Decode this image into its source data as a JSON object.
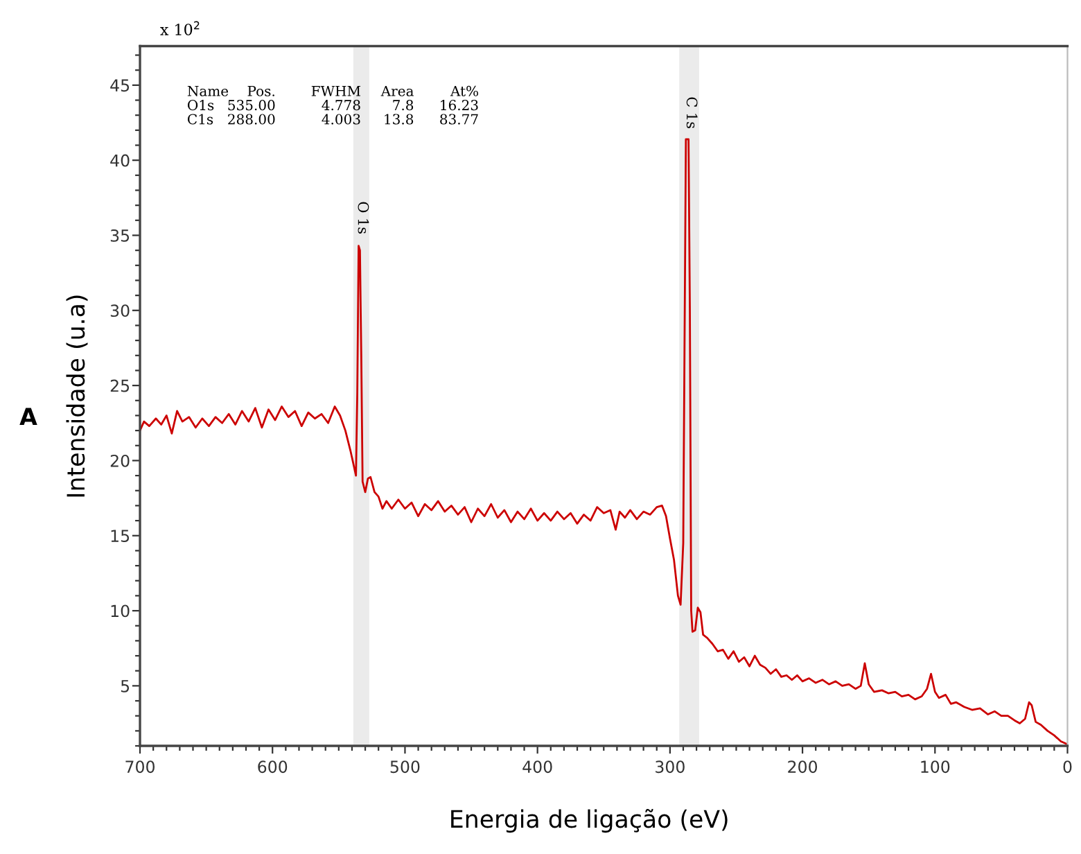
{
  "chart_data": {
    "type": "line",
    "color": "#cc0000",
    "xlabel": "Energia de ligação (eV)",
    "ylabel": "Intensidade (u.a)",
    "x": [
      700,
      697,
      693,
      688,
      684,
      680,
      676,
      672,
      668,
      663,
      658,
      653,
      648,
      643,
      638,
      633,
      628,
      623,
      618,
      613,
      608,
      603,
      598,
      593,
      588,
      583,
      578,
      573,
      568,
      563,
      558,
      553,
      549,
      545,
      541,
      538,
      537,
      536,
      535,
      534,
      533,
      532,
      530,
      528,
      526,
      523,
      520,
      517,
      514,
      510,
      505,
      500,
      495,
      490,
      485,
      480,
      475,
      470,
      465,
      460,
      455,
      450,
      445,
      440,
      435,
      430,
      425,
      420,
      415,
      410,
      405,
      400,
      395,
      390,
      385,
      380,
      375,
      370,
      365,
      360,
      355,
      350,
      345,
      341,
      338,
      334,
      330,
      325,
      320,
      315,
      310,
      306,
      303,
      300,
      297,
      294,
      292,
      290,
      288,
      286,
      285,
      284,
      283,
      281,
      279,
      277,
      275,
      272,
      268,
      264,
      260,
      256,
      252,
      248,
      244,
      240,
      236,
      232,
      228,
      224,
      220,
      216,
      212,
      208,
      204,
      200,
      195,
      190,
      185,
      180,
      175,
      170,
      165,
      160,
      156,
      153,
      150,
      146,
      140,
      135,
      130,
      125,
      120,
      115,
      110,
      106,
      103,
      100,
      97,
      92,
      88,
      84,
      78,
      72,
      66,
      60,
      55,
      50,
      45,
      40,
      36,
      32,
      29,
      27,
      24,
      20,
      15,
      10,
      5,
      0
    ],
    "values": [
      22.0,
      22.6,
      22.3,
      22.8,
      22.4,
      23.0,
      21.8,
      23.3,
      22.6,
      22.9,
      22.2,
      22.8,
      22.3,
      22.9,
      22.5,
      23.1,
      22.4,
      23.3,
      22.6,
      23.5,
      22.2,
      23.4,
      22.7,
      23.6,
      22.9,
      23.3,
      22.3,
      23.2,
      22.8,
      23.1,
      22.5,
      23.6,
      23.0,
      22.0,
      20.6,
      19.4,
      19.0,
      24.5,
      34.3,
      34.0,
      27.0,
      18.6,
      17.9,
      18.8,
      18.9,
      17.9,
      17.6,
      16.8,
      17.3,
      16.8,
      17.4,
      16.8,
      17.2,
      16.3,
      17.1,
      16.7,
      17.3,
      16.6,
      17.0,
      16.4,
      16.9,
      15.9,
      16.8,
      16.3,
      17.1,
      16.2,
      16.7,
      15.9,
      16.6,
      16.1,
      16.8,
      16.0,
      16.5,
      16.0,
      16.6,
      16.1,
      16.5,
      15.8,
      16.4,
      16.0,
      16.9,
      16.5,
      16.7,
      15.4,
      16.6,
      16.2,
      16.7,
      16.1,
      16.6,
      16.4,
      16.9,
      17.0,
      16.3,
      14.8,
      13.4,
      11.0,
      10.4,
      14.5,
      41.4,
      41.4,
      30.0,
      10.0,
      8.6,
      8.7,
      10.2,
      9.9,
      8.4,
      8.2,
      7.8,
      7.3,
      7.4,
      6.8,
      7.3,
      6.6,
      6.9,
      6.3,
      7.0,
      6.4,
      6.2,
      5.8,
      6.1,
      5.6,
      5.7,
      5.4,
      5.7,
      5.3,
      5.5,
      5.2,
      5.4,
      5.1,
      5.3,
      5.0,
      5.1,
      4.8,
      5.0,
      6.5,
      5.1,
      4.6,
      4.7,
      4.5,
      4.6,
      4.3,
      4.4,
      4.1,
      4.3,
      4.8,
      5.8,
      4.6,
      4.2,
      4.4,
      3.8,
      3.9,
      3.6,
      3.4,
      3.5,
      3.1,
      3.3,
      3.0,
      3.0,
      2.7,
      2.5,
      2.8,
      3.9,
      3.7,
      2.6,
      2.4,
      2.0,
      1.7,
      1.3,
      1.1
    ],
    "xlim": [
      700,
      0
    ],
    "xticks": [
      700,
      600,
      500,
      400,
      300,
      200,
      100,
      0
    ],
    "ylim": [
      1,
      47.6
    ],
    "yticks": [
      5,
      10,
      15,
      20,
      25,
      30,
      35,
      40,
      45
    ],
    "bands": [
      {
        "axis": "x",
        "from": 539,
        "to": 527,
        "color": "#ebebeb"
      },
      {
        "axis": "x",
        "from": 293,
        "to": 278,
        "color": "#ebebeb"
      }
    ],
    "annotations": [
      "x 10$^{2}$",
      "A",
      "Name Pos. FWHM Area At%",
      "O1s 535.00 4.778 7.8 16.23",
      "C1s 288.00 4.003 13.8 83.77",
      "O 1s",
      "C 1s"
    ],
    "grid": false
  }
}
